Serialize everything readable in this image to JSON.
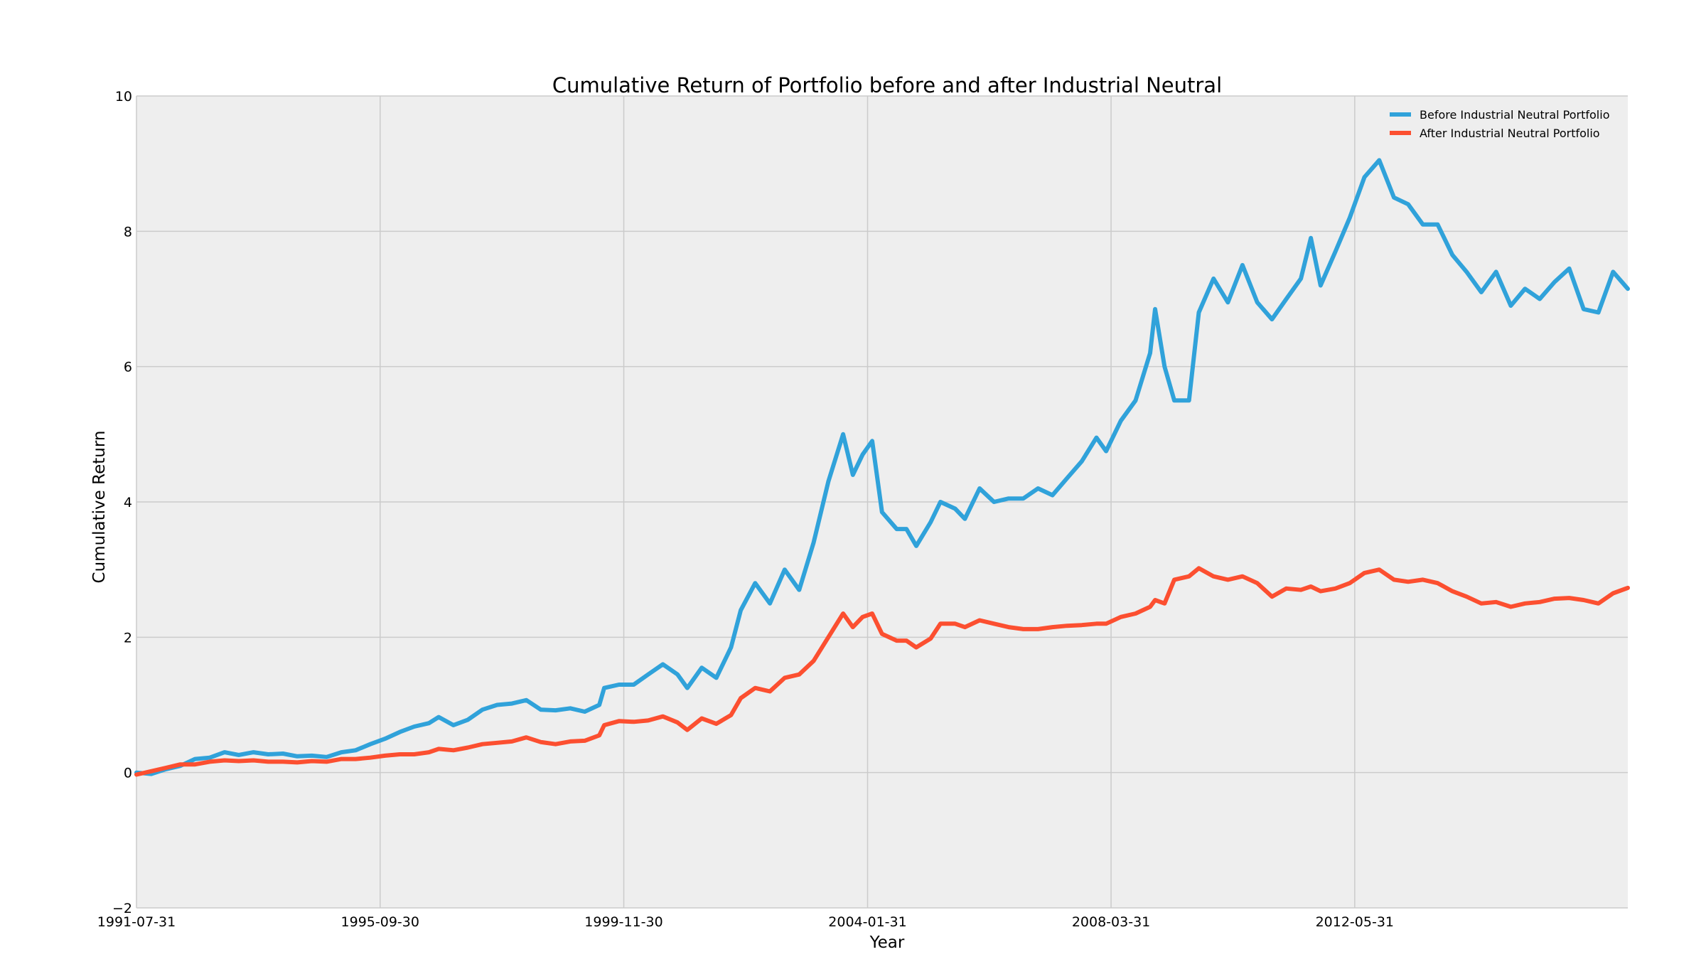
{
  "chart_data": {
    "type": "line",
    "title": "Cumulative Return of Portfolio before and after Industrial Neutral",
    "xlabel": "Year",
    "ylabel": "Cumulative Return",
    "xlim": [
      "1991-07-31",
      "2017-01-31"
    ],
    "ylim": [
      -2,
      10
    ],
    "x_ticks": [
      "1991-07-31",
      "1995-09-30",
      "1999-11-30",
      "2004-01-31",
      "2008-03-31",
      "2012-05-31"
    ],
    "y_ticks": [
      -2,
      0,
      2,
      4,
      6,
      8,
      10
    ],
    "y_tick_labels": [
      "−2",
      "0",
      "2",
      "4",
      "6",
      "8",
      "10"
    ],
    "grid": true,
    "legend_position": "top-right",
    "background": "#eeeeee",
    "series": [
      {
        "name": "Before Industrial Neutral Portfolio",
        "color": "#30a2da",
        "points": [
          [
            "1991-07-31",
            0.0
          ],
          [
            "1991-10-31",
            -0.02
          ],
          [
            "1992-01-31",
            0.05
          ],
          [
            "1992-04-30",
            0.1
          ],
          [
            "1992-07-31",
            0.2
          ],
          [
            "1992-10-31",
            0.22
          ],
          [
            "1993-01-31",
            0.3
          ],
          [
            "1993-04-30",
            0.26
          ],
          [
            "1993-07-31",
            0.3
          ],
          [
            "1993-10-31",
            0.27
          ],
          [
            "1994-01-31",
            0.28
          ],
          [
            "1994-04-30",
            0.24
          ],
          [
            "1994-07-31",
            0.25
          ],
          [
            "1994-10-31",
            0.23
          ],
          [
            "1995-01-31",
            0.3
          ],
          [
            "1995-04-30",
            0.33
          ],
          [
            "1995-07-31",
            0.42
          ],
          [
            "1995-10-31",
            0.5
          ],
          [
            "1996-01-31",
            0.6
          ],
          [
            "1996-04-30",
            0.68
          ],
          [
            "1996-07-31",
            0.73
          ],
          [
            "1996-09-30",
            0.82
          ],
          [
            "1996-12-31",
            0.7
          ],
          [
            "1997-03-31",
            0.78
          ],
          [
            "1997-06-30",
            0.93
          ],
          [
            "1997-09-30",
            1.0
          ],
          [
            "1997-12-31",
            1.02
          ],
          [
            "1998-03-31",
            1.07
          ],
          [
            "1998-06-30",
            0.93
          ],
          [
            "1998-09-30",
            0.92
          ],
          [
            "1998-12-31",
            0.95
          ],
          [
            "1999-03-31",
            0.9
          ],
          [
            "1999-06-30",
            1.0
          ],
          [
            "1999-07-31",
            1.25
          ],
          [
            "1999-10-31",
            1.3
          ],
          [
            "2000-01-31",
            1.3
          ],
          [
            "2000-04-30",
            1.45
          ],
          [
            "2000-07-31",
            1.6
          ],
          [
            "2000-10-31",
            1.45
          ],
          [
            "2000-12-31",
            1.25
          ],
          [
            "2001-03-31",
            1.55
          ],
          [
            "2001-06-30",
            1.4
          ],
          [
            "2001-09-30",
            1.85
          ],
          [
            "2001-11-30",
            2.4
          ],
          [
            "2002-02-28",
            2.8
          ],
          [
            "2002-05-31",
            2.5
          ],
          [
            "2002-08-31",
            3.0
          ],
          [
            "2002-11-30",
            2.7
          ],
          [
            "2003-02-28",
            3.4
          ],
          [
            "2003-05-31",
            4.3
          ],
          [
            "2003-08-31",
            5.0
          ],
          [
            "2003-10-31",
            4.4
          ],
          [
            "2003-12-31",
            4.7
          ],
          [
            "2004-02-29",
            4.9
          ],
          [
            "2004-04-30",
            3.85
          ],
          [
            "2004-07-31",
            3.6
          ],
          [
            "2004-09-30",
            3.6
          ],
          [
            "2004-11-30",
            3.35
          ],
          [
            "2005-02-28",
            3.7
          ],
          [
            "2005-04-30",
            4.0
          ],
          [
            "2005-07-31",
            3.9
          ],
          [
            "2005-09-30",
            3.75
          ],
          [
            "2005-12-31",
            4.2
          ],
          [
            "2006-03-31",
            4.0
          ],
          [
            "2006-06-30",
            4.05
          ],
          [
            "2006-09-30",
            4.05
          ],
          [
            "2006-12-31",
            4.2
          ],
          [
            "2007-03-31",
            4.1
          ],
          [
            "2007-06-30",
            4.35
          ],
          [
            "2007-09-30",
            4.6
          ],
          [
            "2007-12-31",
            4.95
          ],
          [
            "2008-02-29",
            4.75
          ],
          [
            "2008-05-31",
            5.2
          ],
          [
            "2008-08-31",
            5.5
          ],
          [
            "2008-11-30",
            6.2
          ],
          [
            "2008-12-31",
            6.85
          ],
          [
            "2009-02-28",
            6.0
          ],
          [
            "2009-04-30",
            5.5
          ],
          [
            "2009-07-31",
            5.5
          ],
          [
            "2009-09-30",
            6.8
          ],
          [
            "2009-12-31",
            7.3
          ],
          [
            "2010-03-31",
            6.95
          ],
          [
            "2010-06-30",
            7.5
          ],
          [
            "2010-09-30",
            6.95
          ],
          [
            "2010-12-31",
            6.7
          ],
          [
            "2011-03-31",
            7.0
          ],
          [
            "2011-06-30",
            7.3
          ],
          [
            "2011-08-31",
            7.9
          ],
          [
            "2011-10-31",
            7.2
          ],
          [
            "2012-01-31",
            7.7
          ],
          [
            "2012-04-30",
            8.2
          ],
          [
            "2012-07-31",
            8.8
          ],
          [
            "2012-10-31",
            9.05
          ],
          [
            "2013-01-31",
            8.5
          ],
          [
            "2013-04-30",
            8.4
          ],
          [
            "2013-07-31",
            8.1
          ],
          [
            "2013-10-31",
            8.1
          ],
          [
            "2014-01-31",
            7.65
          ],
          [
            "2014-04-30",
            7.4
          ],
          [
            "2014-07-31",
            7.1
          ],
          [
            "2014-10-31",
            7.4
          ],
          [
            "2015-01-31",
            6.9
          ],
          [
            "2015-04-30",
            7.15
          ],
          [
            "2015-07-31",
            7.0
          ],
          [
            "2015-10-31",
            7.25
          ],
          [
            "2016-01-31",
            7.45
          ],
          [
            "2016-04-30",
            6.85
          ],
          [
            "2016-07-31",
            6.8
          ],
          [
            "2016-10-31",
            7.4
          ],
          [
            "2017-01-31",
            7.15
          ]
        ]
      },
      {
        "name": "After Industrial Neutral Portfolio",
        "color": "#fc4f30",
        "points": [
          [
            "1991-07-31",
            -0.03
          ],
          [
            "1991-10-31",
            0.02
          ],
          [
            "1992-01-31",
            0.07
          ],
          [
            "1992-04-30",
            0.12
          ],
          [
            "1992-07-31",
            0.12
          ],
          [
            "1992-10-31",
            0.16
          ],
          [
            "1993-01-31",
            0.18
          ],
          [
            "1993-04-30",
            0.17
          ],
          [
            "1993-07-31",
            0.18
          ],
          [
            "1993-10-31",
            0.16
          ],
          [
            "1994-01-31",
            0.16
          ],
          [
            "1994-04-30",
            0.15
          ],
          [
            "1994-07-31",
            0.17
          ],
          [
            "1994-10-31",
            0.16
          ],
          [
            "1995-01-31",
            0.2
          ],
          [
            "1995-04-30",
            0.2
          ],
          [
            "1995-07-31",
            0.22
          ],
          [
            "1995-10-31",
            0.25
          ],
          [
            "1996-01-31",
            0.27
          ],
          [
            "1996-04-30",
            0.27
          ],
          [
            "1996-07-31",
            0.3
          ],
          [
            "1996-09-30",
            0.35
          ],
          [
            "1996-12-31",
            0.33
          ],
          [
            "1997-03-31",
            0.37
          ],
          [
            "1997-06-30",
            0.42
          ],
          [
            "1997-09-30",
            0.44
          ],
          [
            "1997-12-31",
            0.46
          ],
          [
            "1998-03-31",
            0.52
          ],
          [
            "1998-06-30",
            0.45
          ],
          [
            "1998-09-30",
            0.42
          ],
          [
            "1998-12-31",
            0.46
          ],
          [
            "1999-03-31",
            0.47
          ],
          [
            "1999-06-30",
            0.55
          ],
          [
            "1999-07-31",
            0.7
          ],
          [
            "1999-10-31",
            0.76
          ],
          [
            "2000-01-31",
            0.75
          ],
          [
            "2000-04-30",
            0.77
          ],
          [
            "2000-07-31",
            0.83
          ],
          [
            "2000-10-31",
            0.74
          ],
          [
            "2000-12-31",
            0.63
          ],
          [
            "2001-03-31",
            0.8
          ],
          [
            "2001-06-30",
            0.72
          ],
          [
            "2001-09-30",
            0.85
          ],
          [
            "2001-11-30",
            1.1
          ],
          [
            "2002-02-28",
            1.25
          ],
          [
            "2002-05-31",
            1.2
          ],
          [
            "2002-08-31",
            1.4
          ],
          [
            "2002-11-30",
            1.45
          ],
          [
            "2003-02-28",
            1.65
          ],
          [
            "2003-05-31",
            2.0
          ],
          [
            "2003-08-31",
            2.35
          ],
          [
            "2003-10-31",
            2.15
          ],
          [
            "2003-12-31",
            2.3
          ],
          [
            "2004-02-29",
            2.35
          ],
          [
            "2004-04-30",
            2.05
          ],
          [
            "2004-07-31",
            1.95
          ],
          [
            "2004-09-30",
            1.95
          ],
          [
            "2004-11-30",
            1.85
          ],
          [
            "2005-02-28",
            1.98
          ],
          [
            "2005-04-30",
            2.2
          ],
          [
            "2005-07-31",
            2.2
          ],
          [
            "2005-09-30",
            2.15
          ],
          [
            "2005-12-31",
            2.25
          ],
          [
            "2006-03-31",
            2.2
          ],
          [
            "2006-06-30",
            2.15
          ],
          [
            "2006-09-30",
            2.12
          ],
          [
            "2006-12-31",
            2.12
          ],
          [
            "2007-03-31",
            2.15
          ],
          [
            "2007-06-30",
            2.17
          ],
          [
            "2007-09-30",
            2.18
          ],
          [
            "2007-12-31",
            2.2
          ],
          [
            "2008-02-29",
            2.2
          ],
          [
            "2008-05-31",
            2.3
          ],
          [
            "2008-08-31",
            2.35
          ],
          [
            "2008-11-30",
            2.45
          ],
          [
            "2008-12-31",
            2.55
          ],
          [
            "2009-02-28",
            2.5
          ],
          [
            "2009-04-30",
            2.85
          ],
          [
            "2009-07-31",
            2.9
          ],
          [
            "2009-09-30",
            3.02
          ],
          [
            "2009-12-31",
            2.9
          ],
          [
            "2010-03-31",
            2.85
          ],
          [
            "2010-06-30",
            2.9
          ],
          [
            "2010-09-30",
            2.8
          ],
          [
            "2010-12-31",
            2.6
          ],
          [
            "2011-03-31",
            2.72
          ],
          [
            "2011-06-30",
            2.7
          ],
          [
            "2011-08-31",
            2.75
          ],
          [
            "2011-10-31",
            2.68
          ],
          [
            "2012-01-31",
            2.72
          ],
          [
            "2012-04-30",
            2.8
          ],
          [
            "2012-07-31",
            2.95
          ],
          [
            "2012-10-31",
            3.0
          ],
          [
            "2013-01-31",
            2.85
          ],
          [
            "2013-04-30",
            2.82
          ],
          [
            "2013-07-31",
            2.85
          ],
          [
            "2013-10-31",
            2.8
          ],
          [
            "2014-01-31",
            2.68
          ],
          [
            "2014-04-30",
            2.6
          ],
          [
            "2014-07-31",
            2.5
          ],
          [
            "2014-10-31",
            2.52
          ],
          [
            "2015-01-31",
            2.45
          ],
          [
            "2015-04-30",
            2.5
          ],
          [
            "2015-07-31",
            2.52
          ],
          [
            "2015-10-31",
            2.57
          ],
          [
            "2016-01-31",
            2.58
          ],
          [
            "2016-04-30",
            2.55
          ],
          [
            "2016-07-31",
            2.5
          ],
          [
            "2016-10-31",
            2.65
          ],
          [
            "2017-01-31",
            2.73
          ]
        ]
      }
    ]
  }
}
